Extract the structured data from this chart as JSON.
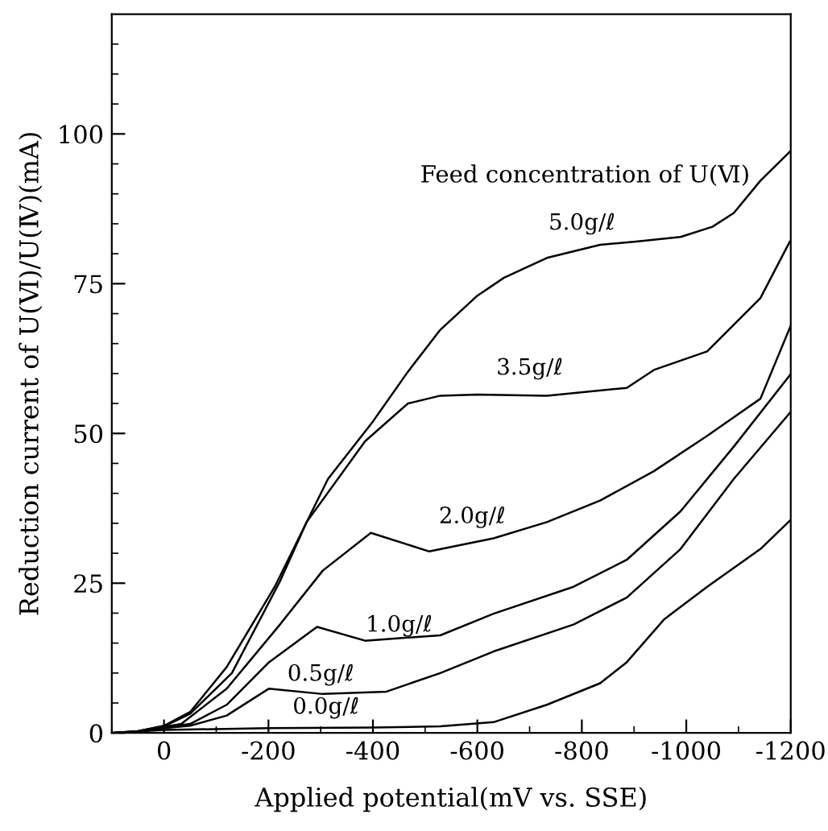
{
  "chart_data": {
    "type": "line",
    "xlabel": "Applied potential(mV vs. SSE)",
    "ylabel": "Reduction current of U(Ⅵ)/U(Ⅳ)(mA)",
    "annotations": [
      "Feed concentration of U(Ⅵ)"
    ],
    "xlim": [
      100,
      -1200
    ],
    "ylim": [
      0,
      120
    ],
    "xticks": [
      {
        "value": 100,
        "label": null
      },
      0,
      {
        "value": -100,
        "label": null
      },
      -200,
      {
        "value": -300,
        "label": null
      },
      -400,
      {
        "value": -500,
        "label": null
      },
      -600,
      {
        "value": -700,
        "label": null
      },
      -800,
      {
        "value": -900,
        "label": null
      },
      -1000,
      {
        "value": -1100,
        "label": null
      },
      -1200
    ],
    "yticks": [
      0,
      {
        "value": 5,
        "label": null
      },
      {
        "value": 10,
        "label": null
      },
      {
        "value": 15,
        "label": null
      },
      {
        "value": 20,
        "label": null
      },
      25,
      {
        "value": 30,
        "label": null
      },
      {
        "value": 35,
        "label": null
      },
      {
        "value": 40,
        "label": null
      },
      {
        "value": 45,
        "label": null
      },
      50,
      {
        "value": 55,
        "label": null
      },
      {
        "value": 60,
        "label": null
      },
      {
        "value": 65,
        "label": null
      },
      {
        "value": 70,
        "label": null
      },
      75,
      {
        "value": 80,
        "label": null
      },
      {
        "value": 85,
        "label": null
      },
      {
        "value": 90,
        "label": null
      },
      {
        "value": 95,
        "label": null
      },
      100,
      {
        "value": 105,
        "label": null
      },
      {
        "value": 110,
        "label": null
      },
      {
        "value": 115,
        "label": null
      }
    ],
    "grid": false,
    "legend": false,
    "marker": "none",
    "line_style": "solid",
    "series": [
      {
        "name": "5.0g/ℓ",
        "color": "#000000",
        "x": [
          100,
          50,
          0,
          -50,
          -120,
          -212,
          -314,
          -400,
          -467,
          -529,
          -600,
          -651,
          -733,
          -835,
          -900,
          -989,
          -1050,
          -1091,
          -1142,
          -1198
        ],
        "values": [
          0,
          0.3,
          1.2,
          3.5,
          11,
          24.4,
          42.4,
          52,
          60.3,
          67.3,
          73,
          76,
          79.3,
          81.5,
          82,
          82.8,
          84.5,
          86.8,
          92.2,
          97
        ]
      },
      {
        "name": "3.5g/ℓ",
        "color": "#000000",
        "x": [
          100,
          50,
          0,
          -50,
          -130,
          -222,
          -273,
          -385,
          -467,
          -529,
          -600,
          -733,
          -886,
          -938,
          -1040,
          -1142,
          -1198
        ],
        "values": [
          0,
          0.3,
          1.1,
          3.2,
          10,
          25.3,
          35.2,
          48.7,
          55,
          56.3,
          56.5,
          56.3,
          57.6,
          60.6,
          63.7,
          72.6,
          82
        ]
      },
      {
        "name": "2.0g/ℓ",
        "color": "#000000",
        "x": [
          100,
          50,
          0,
          -33,
          -120,
          -222,
          -304,
          -396,
          -508,
          -631,
          -733,
          -835,
          -938,
          -1040,
          -1142,
          -1200
        ],
        "values": [
          0,
          0.2,
          1,
          1.5,
          7.4,
          18.1,
          27.1,
          33.4,
          30.3,
          32.5,
          35.2,
          38.8,
          43.7,
          49.6,
          55.8,
          68
        ]
      },
      {
        "name": "1.0g/ℓ",
        "color": "#000000",
        "x": [
          100,
          50,
          0,
          -50,
          -120,
          -201,
          -293,
          -385,
          -529,
          -631,
          -784,
          -886,
          -989,
          -1091,
          -1200
        ],
        "values": [
          0,
          0.2,
          0.9,
          1.5,
          4.7,
          11.8,
          17.7,
          15.4,
          16.3,
          19.9,
          24.4,
          28.9,
          37,
          47.8,
          59.9
        ]
      },
      {
        "name": "0.5g/ℓ",
        "color": "#000000",
        "x": [
          100,
          50,
          0,
          -50,
          -120,
          -201,
          -304,
          -426,
          -529,
          -631,
          -784,
          -886,
          -989,
          -1091,
          -1200
        ],
        "values": [
          0,
          0.2,
          0.8,
          1.2,
          2.9,
          7.4,
          6.5,
          6.9,
          10,
          13.6,
          18.1,
          22.6,
          30.7,
          42.4,
          53.6
        ]
      },
      {
        "name": "0.0g/ℓ",
        "color": "#000000",
        "x": [
          100,
          0,
          -200,
          -400,
          -529,
          -631,
          -733,
          -835,
          -886,
          -958,
          -1040,
          -1142,
          -1200
        ],
        "values": [
          0,
          0.5,
          0.8,
          0.9,
          1.1,
          1.8,
          4.7,
          8.3,
          11.8,
          19,
          24.4,
          30.7,
          35.6
        ]
      }
    ]
  }
}
